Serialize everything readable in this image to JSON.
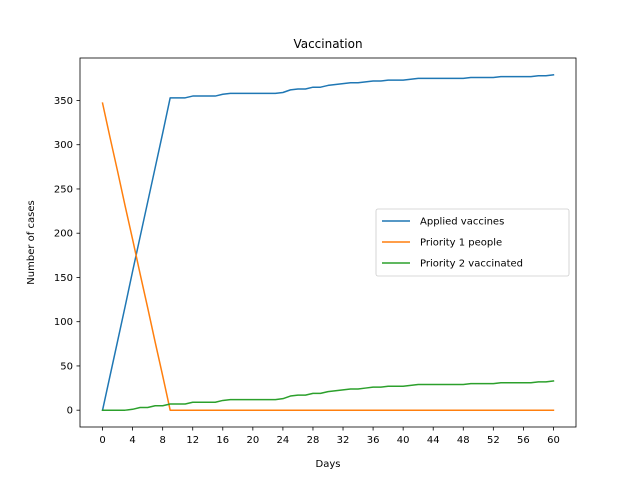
{
  "chart_data": {
    "type": "line",
    "title": "Vaccination",
    "xlabel": "Days",
    "ylabel": "Number of cases",
    "xlim": [
      -3,
      63
    ],
    "ylim": [
      -19,
      398
    ],
    "xticks": [
      0,
      4,
      8,
      12,
      16,
      20,
      24,
      28,
      32,
      36,
      40,
      44,
      48,
      52,
      56,
      60
    ],
    "xtick_labels": [
      "0",
      "4",
      "8",
      "12",
      "16",
      "20",
      "24",
      "28",
      "32",
      "36",
      "40",
      "44",
      "48",
      "52",
      "56",
      "60"
    ],
    "yticks": [
      0,
      50,
      100,
      150,
      200,
      250,
      300,
      350
    ],
    "ytick_labels": [
      "0",
      "50",
      "100",
      "150",
      "200",
      "250",
      "300",
      "350"
    ],
    "grid": false,
    "legend_position": "center-right",
    "x": [
      0,
      1,
      2,
      3,
      4,
      5,
      6,
      7,
      8,
      9,
      10,
      11,
      12,
      13,
      14,
      15,
      16,
      17,
      18,
      19,
      20,
      21,
      22,
      23,
      24,
      25,
      26,
      27,
      28,
      29,
      30,
      31,
      32,
      33,
      34,
      35,
      36,
      37,
      38,
      39,
      40,
      41,
      42,
      43,
      44,
      45,
      46,
      47,
      48,
      49,
      50,
      51,
      52,
      53,
      54,
      55,
      56,
      57,
      58,
      59,
      60
    ],
    "series": [
      {
        "name": "Applied vaccines",
        "color": "#1f77b4",
        "values": [
          0,
          39,
          78,
          117,
          157,
          196,
          235,
          274,
          313,
          353,
          353,
          353,
          355,
          355,
          355,
          355,
          357,
          358,
          358,
          358,
          358,
          358,
          358,
          358,
          359,
          362,
          363,
          363,
          365,
          365,
          367,
          368,
          369,
          370,
          370,
          371,
          372,
          372,
          373,
          373,
          373,
          374,
          375,
          375,
          375,
          375,
          375,
          375,
          375,
          376,
          376,
          376,
          376,
          377,
          377,
          377,
          377,
          377,
          378,
          378,
          379
        ]
      },
      {
        "name": "Priority 1 people",
        "color": "#ff7f0e",
        "values": [
          347,
          308,
          270,
          231,
          193,
          154,
          116,
          77,
          39,
          0,
          0,
          0,
          0,
          0,
          0,
          0,
          0,
          0,
          0,
          0,
          0,
          0,
          0,
          0,
          0,
          0,
          0,
          0,
          0,
          0,
          0,
          0,
          0,
          0,
          0,
          0,
          0,
          0,
          0,
          0,
          0,
          0,
          0,
          0,
          0,
          0,
          0,
          0,
          0,
          0,
          0,
          0,
          0,
          0,
          0,
          0,
          0,
          0,
          0,
          0,
          0
        ]
      },
      {
        "name": "Priority 2 vaccinated",
        "color": "#2ca02c",
        "values": [
          0,
          0,
          0,
          0,
          1,
          3,
          3,
          5,
          5,
          7,
          7,
          7,
          9,
          9,
          9,
          9,
          11,
          12,
          12,
          12,
          12,
          12,
          12,
          12,
          13,
          16,
          17,
          17,
          19,
          19,
          21,
          22,
          23,
          24,
          24,
          25,
          26,
          26,
          27,
          27,
          27,
          28,
          29,
          29,
          29,
          29,
          29,
          29,
          29,
          30,
          30,
          30,
          30,
          31,
          31,
          31,
          31,
          31,
          32,
          32,
          33
        ]
      }
    ]
  }
}
